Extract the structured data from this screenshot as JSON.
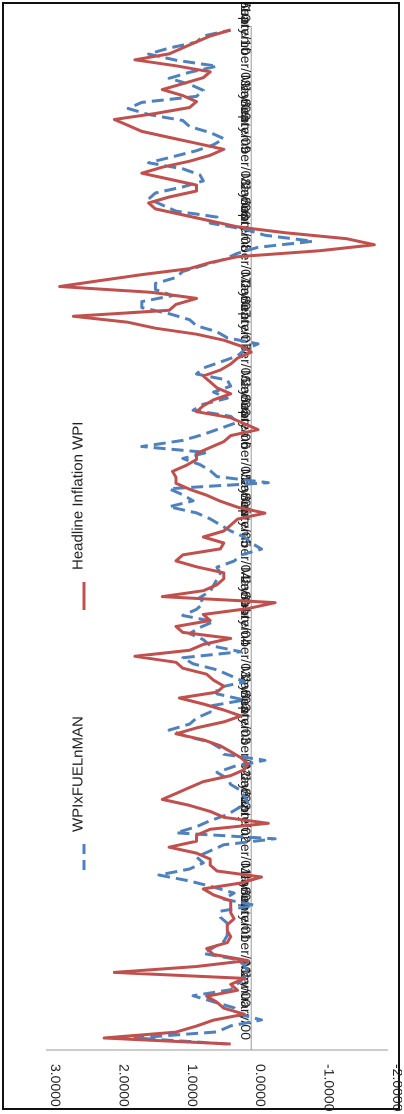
{
  "chart_data": {
    "type": "line",
    "orientation": "rotated-90-clockwise",
    "ylim": [
      -2.0,
      3.0
    ],
    "y_ticks": [
      "3.0000",
      "2.0000",
      "1.0000",
      "0.0000",
      "-1.0000",
      "-2.0000"
    ],
    "x_tick_labels": [
      "January/00",
      "May/00",
      "September/00",
      "January/01",
      "May/01",
      "September/01",
      "January/02",
      "May/02",
      "September/02",
      "January/03",
      "May/03",
      "September/03",
      "January/04",
      "May/04",
      "September/04",
      "January/05",
      "May/05",
      "September/05",
      "January/06",
      "May/06",
      "September/06",
      "January/07",
      "May/07",
      "September/07",
      "January/08",
      "May/08",
      "September/08",
      "January/09",
      "May/09",
      "September/09",
      "January/10",
      "May/10"
    ],
    "legend_position": "top",
    "series": [
      {
        "name": "WPIxFUELnMAN",
        "color": "#4f81bd",
        "style": "dashed",
        "values": [
          0.35,
          1.7,
          0.5,
          0.3,
          -0.15,
          0.2,
          0.25,
          0.55,
          0.85,
          0.3,
          0.2,
          0.1,
          0.05,
          0.1,
          0.2,
          0.7,
          0.55,
          0.4,
          0.35,
          0.35,
          0.35,
          0.45,
          0.45,
          -0.05,
          0.4,
          0.25,
          0.55,
          0.9,
          1.35,
          0.9,
          0.7,
          0.8,
          0.6,
          0.4,
          -0.35,
          1.1,
          0.8,
          0.6,
          0.35,
          0.2,
          0.05,
          0.1,
          0.15,
          0.3,
          0.35,
          0.5,
          0.25,
          -0.2,
          0.4,
          0.45,
          0.6,
          0.95,
          1.2,
          0.9,
          0.8,
          0.6,
          0.6,
          0.1,
          0.5,
          0.5,
          0.1,
          0.3,
          0.5,
          0.85,
          1.0,
          0.15,
          0.6,
          0.7,
          0.9,
          0.75,
          0.55,
          1.0,
          0.8,
          0.7,
          0.75,
          0.6,
          0.55,
          0.5,
          0.45,
          0.5,
          0.25,
          0.15,
          -0.15,
          0.0,
          0.1,
          0.3,
          0.45,
          0.6,
          0.8,
          1.2,
          0.85,
          1.0,
          1.2,
          -0.25,
          0.5,
          0.6,
          0.75,
          1.0,
          0.65,
          1.6,
          1.0,
          0.7,
          0.45,
          0.2,
          0.3,
          0.85,
          0.7,
          0.35,
          0.55,
          0.3,
          0.35,
          0.8,
          0.7,
          0.45,
          0.2,
          0.1,
          -0.1,
          0.35,
          0.5,
          0.8,
          0.9,
          1.2,
          1.6,
          1.6,
          1.15,
          1.4,
          1.4,
          1.1,
          1.0,
          0.7,
          0.4,
          0.2,
          -0.1,
          -0.9,
          -0.2,
          0.1,
          0.6,
          0.5,
          1.1,
          1.3,
          1.5,
          1.4,
          1.0,
          0.7,
          0.75,
          1.0,
          1.5,
          1.15,
          0.8,
          0.55,
          0.4,
          0.6,
          0.9,
          1.0,
          1.5,
          1.8,
          1.6,
          0.8,
          0.7,
          0.9,
          1.2,
          0.9,
          0.5,
          1.1,
          1.5,
          1.2,
          0.8,
          0.7,
          0.3
        ]
      },
      {
        "name": "Headline Inflation WPI",
        "color": "#c0504d",
        "style": "solid",
        "values": [
          0.3,
          2.15,
          1.1,
          0.8,
          0.55,
          0.1,
          0.4,
          0.5,
          0.65,
          0.2,
          0.3,
          0.1,
          2.0,
          0.8,
          0.05,
          0.55,
          0.65,
          0.35,
          0.3,
          0.35,
          0.35,
          0.25,
          0.3,
          0.3,
          0.3,
          0.55,
          0.7,
          0.15,
          -0.15,
          0.5,
          0.6,
          0.6,
          0.8,
          1.2,
          0.8,
          0.8,
          0.6,
          -0.25,
          0.4,
          0.6,
          0.9,
          1.3,
          1.1,
          0.9,
          0.7,
          0.3,
          0.1,
          0.05,
          0.15,
          0.3,
          0.45,
          0.7,
          1.1,
          0.8,
          0.4,
          0.15,
          0.4,
          0.7,
          1.05,
          0.5,
          0.4,
          0.55,
          0.65,
          1.0,
          1.1,
          1.7,
          0.9,
          0.7,
          0.3,
          1.0,
          1.1,
          0.6,
          0.7,
          0.05,
          -0.35,
          1.3,
          0.7,
          0.5,
          0.4,
          0.4,
          0.8,
          1.1,
          1.0,
          0.45,
          0.4,
          0.7,
          0.4,
          0.3,
          0.2,
          -0.2,
          0.2,
          0.45,
          0.65,
          0.9,
          1.1,
          1.1,
          1.15,
          0.95,
          0.8,
          0.8,
          0.6,
          0.4,
          0.3,
          -0.1,
          0.1,
          0.3,
          0.8,
          0.7,
          0.55,
          0.3,
          0.5,
          0.6,
          0.7,
          0.45,
          0.3,
          0.2,
          0.0,
          0.15,
          0.4,
          0.8,
          1.4,
          1.8,
          2.6,
          1.2,
          1.1,
          0.8,
          1.45,
          2.8,
          2.2,
          1.6,
          0.9,
          0.6,
          0.2,
          -1.0,
          -1.8,
          -1.4,
          -0.5,
          0.2,
          0.6,
          1.0,
          1.4,
          1.5,
          1.2,
          0.8,
          0.8,
          1.2,
          1.6,
          1.3,
          0.9,
          0.6,
          0.4,
          0.8,
          1.2,
          1.6,
          1.8,
          2.0,
          1.4,
          0.9,
          0.8,
          1.0,
          1.3,
          1.0,
          0.7,
          0.6,
          1.1,
          1.7,
          1.2,
          1.0,
          0.8,
          0.6,
          0.3
        ]
      }
    ]
  }
}
